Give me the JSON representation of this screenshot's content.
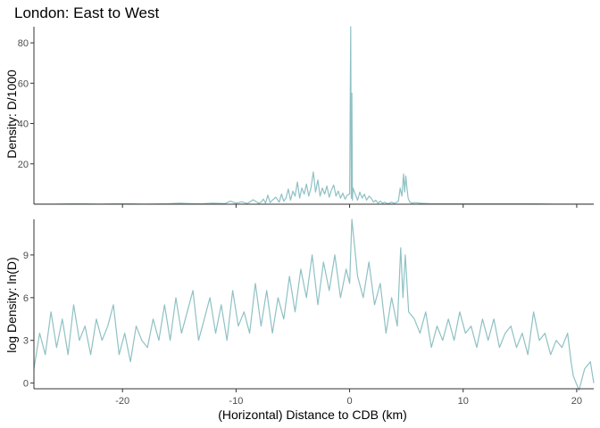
{
  "chart_data": {
    "type": "line",
    "title": "London: East to West",
    "xlabel": "(Horizontal) Distance to CDB (km)",
    "xlim": [
      -27.8,
      21.5
    ],
    "x_ticks": [
      -20,
      -10,
      0,
      10,
      20
    ],
    "x_tick_labels": [
      "-20",
      "-10",
      "0",
      "10",
      "20"
    ],
    "line_color": "#8fc1c4",
    "grid": false,
    "panels": [
      {
        "id": "top",
        "ylabel": "Density: D/1000",
        "ylim": [
          0,
          88
        ],
        "y_ticks": [
          20,
          40,
          60,
          80
        ],
        "y_tick_labels": [
          "20",
          "40",
          "60",
          "80"
        ],
        "series": [
          {
            "x": [
              -27.8,
              -26,
              -24,
              -22,
              -20,
              -18,
              -16,
              -15,
              -14,
              -13,
              -12,
              -11,
              -10.5,
              -10,
              -9.5,
              -9,
              -8.5,
              -8,
              -7.8,
              -7.6,
              -7.4,
              -7.2,
              -7,
              -6.8,
              -6.5,
              -6.2,
              -6,
              -5.8,
              -5.6,
              -5.4,
              -5.2,
              -5,
              -4.8,
              -4.6,
              -4.4,
              -4.2,
              -4,
              -3.8,
              -3.6,
              -3.4,
              -3.2,
              -3,
              -2.8,
              -2.6,
              -2.4,
              -2.2,
              -2,
              -1.8,
              -1.6,
              -1.4,
              -1.2,
              -1,
              -0.8,
              -0.6,
              -0.4,
              -0.2,
              0,
              0.1,
              0.15,
              0.2,
              0.25,
              0.3,
              0.5,
              0.7,
              0.9,
              1.1,
              1.3,
              1.5,
              1.7,
              1.9,
              2.1,
              2.3,
              2.5,
              2.7,
              2.9,
              3.1,
              3.3,
              3.5,
              3.7,
              3.9,
              4.1,
              4.3,
              4.45,
              4.6,
              4.75,
              4.85,
              4.95,
              5.05,
              5.15,
              5.3,
              5.5,
              5.8,
              6.2,
              7,
              8,
              10,
              12,
              14,
              16,
              18,
              20,
              21.5
            ],
            "y": [
              0.1,
              0.1,
              0.2,
              0.1,
              0.2,
              0.1,
              0.2,
              0.5,
              0.3,
              0.2,
              0.5,
              0.3,
              1.5,
              0.5,
              1.2,
              0.3,
              2.2,
              0.4,
              1.0,
              2.5,
              0.5,
              4.5,
              0.8,
              2.0,
              3.5,
              1.0,
              5.0,
              1.5,
              3.0,
              7.5,
              2.0,
              6.5,
              4.0,
              11.0,
              3.0,
              8.0,
              5.0,
              10.0,
              4.0,
              8.0,
              16.0,
              6.0,
              12.0,
              4.0,
              8.0,
              5.0,
              9.0,
              3.5,
              7.0,
              9.5,
              4.0,
              6.5,
              3.0,
              5.5,
              2.5,
              4.5,
              5.0,
              88.0,
              3.0,
              55.0,
              2.0,
              8.0,
              5.0,
              2.0,
              6.0,
              3.0,
              5.0,
              2.0,
              4.0,
              3.0,
              1.0,
              2.0,
              0.5,
              1.5,
              0.5,
              1.0,
              0.3,
              0.5,
              1.0,
              0.5,
              0.8,
              1.5,
              8.0,
              4.0,
              15.0,
              6.0,
              14.0,
              8.0,
              3.0,
              1.0,
              0.5,
              0.8,
              0.5,
              0.3,
              0.2,
              0.2,
              0.2,
              0.2,
              0.2,
              0.1,
              0.1,
              0.1
            ]
          }
        ]
      },
      {
        "id": "bottom",
        "ylabel": "log Density: ln(D)",
        "ylim": [
          -0.4,
          11.5
        ],
        "y_ticks": [
          0,
          3,
          6,
          9
        ],
        "y_tick_labels": [
          "0",
          "3",
          "6",
          "9"
        ],
        "series": [
          {
            "x": [
              -27.8,
              -27.3,
              -26.8,
              -26.3,
              -25.8,
              -25.3,
              -24.8,
              -24.3,
              -23.8,
              -23.3,
              -22.8,
              -22.3,
              -21.8,
              -21.3,
              -20.8,
              -20.3,
              -19.8,
              -19.3,
              -18.8,
              -18.3,
              -17.8,
              -17.3,
              -16.8,
              -16.3,
              -15.8,
              -15.3,
              -14.8,
              -14.3,
              -13.8,
              -13.3,
              -12.8,
              -12.3,
              -11.8,
              -11.3,
              -10.8,
              -10.3,
              -9.8,
              -9.3,
              -8.8,
              -8.3,
              -7.8,
              -7.3,
              -6.8,
              -6.3,
              -5.8,
              -5.3,
              -4.8,
              -4.3,
              -3.8,
              -3.3,
              -2.8,
              -2.3,
              -1.8,
              -1.3,
              -0.8,
              -0.3,
              0.0,
              0.2,
              0.7,
              1.2,
              1.7,
              2.2,
              2.7,
              3.2,
              3.7,
              4.2,
              4.5,
              4.7,
              4.9,
              5.2,
              5.7,
              6.2,
              6.7,
              7.2,
              7.7,
              8.2,
              8.7,
              9.2,
              9.7,
              10.2,
              10.7,
              11.2,
              11.7,
              12.2,
              12.7,
              13.2,
              13.7,
              14.2,
              14.7,
              15.2,
              15.7,
              16.2,
              16.7,
              17.2,
              17.7,
              18.2,
              18.7,
              19.2,
              19.5,
              19.7,
              20.2,
              20.7,
              21.2,
              21.5
            ],
            "y": [
              1.0,
              3.5,
              2.0,
              5.0,
              2.5,
              4.5,
              2.0,
              5.5,
              3.0,
              4.0,
              2.0,
              4.5,
              3.0,
              4.0,
              5.5,
              2.0,
              3.5,
              1.5,
              4.0,
              3.0,
              2.5,
              4.5,
              3.0,
              5.5,
              3.0,
              6.0,
              3.5,
              5.0,
              6.5,
              3.0,
              4.5,
              6.0,
              3.5,
              5.5,
              3.0,
              6.5,
              4.0,
              5.0,
              3.5,
              7.0,
              4.0,
              6.5,
              3.5,
              6.0,
              4.5,
              7.5,
              5.0,
              8.0,
              6.0,
              9.0,
              5.5,
              8.5,
              6.5,
              9.0,
              6.0,
              8.0,
              7.0,
              11.5,
              7.5,
              6.0,
              8.5,
              5.5,
              7.0,
              3.5,
              6.0,
              4.0,
              9.5,
              6.0,
              9.0,
              5.0,
              4.5,
              3.5,
              5.0,
              2.5,
              4.0,
              3.0,
              4.5,
              3.0,
              5.0,
              3.5,
              4.0,
              2.5,
              4.5,
              3.0,
              4.5,
              2.5,
              3.5,
              4.0,
              2.5,
              3.5,
              2.0,
              5.0,
              3.0,
              3.5,
              2.0,
              3.0,
              2.5,
              3.5,
              1.5,
              0.5,
              -0.5,
              1.0,
              1.5,
              0.0
            ]
          }
        ]
      }
    ]
  }
}
